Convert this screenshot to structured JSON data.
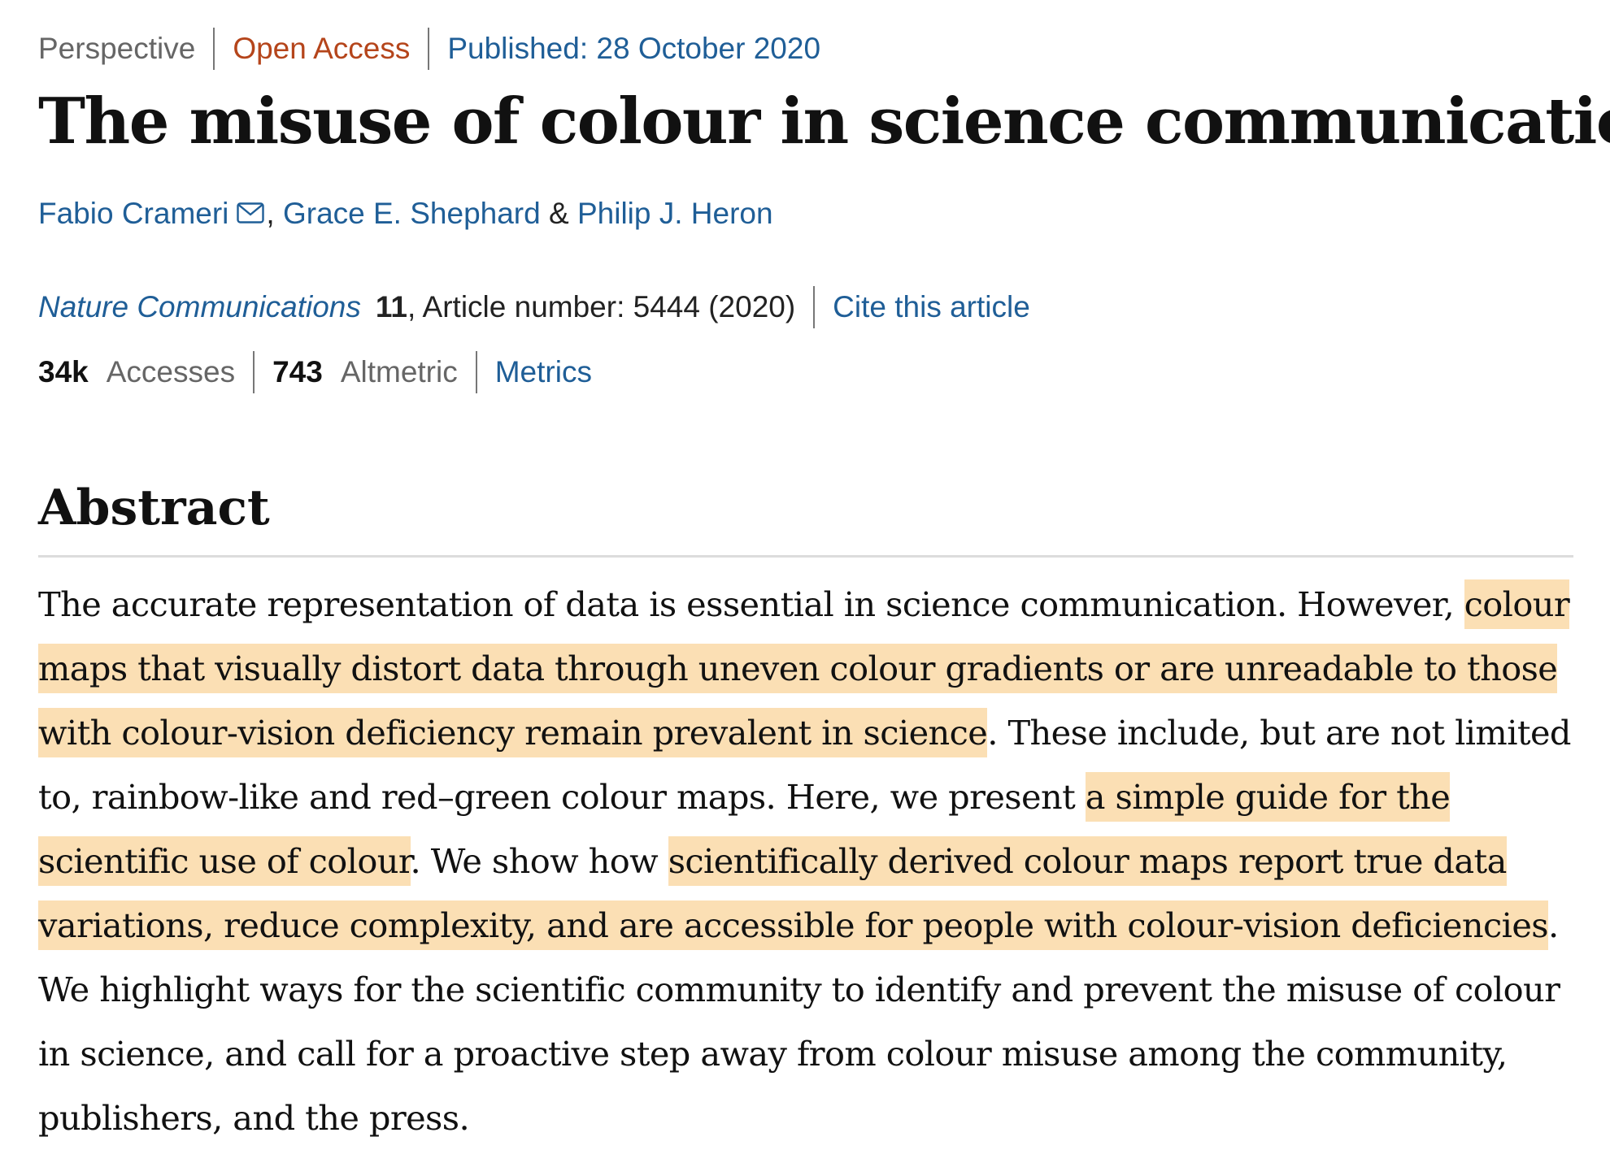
{
  "article": {
    "type": "Perspective",
    "access": "Open Access",
    "published": "Published: 28 October 2020",
    "title": "The misuse of colour in science communication",
    "authors": [
      {
        "name": "Fabio Crameri"
      },
      {
        "name": "Grace E. Shephard"
      },
      {
        "name": "Philip J. Heron"
      }
    ],
    "author_separators": [
      ",",
      "&"
    ],
    "journal": "Nature Communications",
    "volume": "11",
    "article_number": ", Article number: 5444 (2020)",
    "cite_label": "Cite this article",
    "accesses_value": "34k",
    "accesses_label": "Accesses",
    "altmetric_value": "743",
    "altmetric_label": "Altmetric",
    "metrics_label": "Metrics"
  },
  "abstract": {
    "heading": "Abstract",
    "lines": [
      [
        {
          "t": "The accurate representation of data is essential in science communication. However, ",
          "h": false
        },
        {
          "t": "colour",
          "h": true
        }
      ],
      [
        {
          "t": "maps that visually distort data through uneven colour gradients or are unreadable to those",
          "h": true
        }
      ],
      [
        {
          "t": "with colour-vision deficiency remain prevalent in science",
          "h": true
        },
        {
          "t": ". These include, but are not limited",
          "h": false
        }
      ],
      [
        {
          "t": "to, rainbow-like and red–green colour maps. Here, we present ",
          "h": false
        },
        {
          "t": "a simple guide for the",
          "h": true
        }
      ],
      [
        {
          "t": "scientific use of colour",
          "h": true
        },
        {
          "t": ". We show how ",
          "h": false
        },
        {
          "t": "scientifically derived colour maps report true data",
          "h": true
        }
      ],
      [
        {
          "t": "variations, reduce complexity, and are accessible for people with colour-vision deficiencies",
          "h": true
        },
        {
          "t": ".",
          "h": false
        }
      ],
      [
        {
          "t": "We highlight ways for the scientific community to identify and prevent the misuse of colour",
          "h": false
        }
      ],
      [
        {
          "t": "in science, and call for a proactive step away from colour misuse among the community,",
          "h": false
        }
      ],
      [
        {
          "t": "publishers, and the press.",
          "h": false
        }
      ]
    ]
  },
  "colors": {
    "link": "#1f5e97",
    "open_access": "#b5451b",
    "highlight": "#fbdfb4",
    "muted": "#666666"
  }
}
